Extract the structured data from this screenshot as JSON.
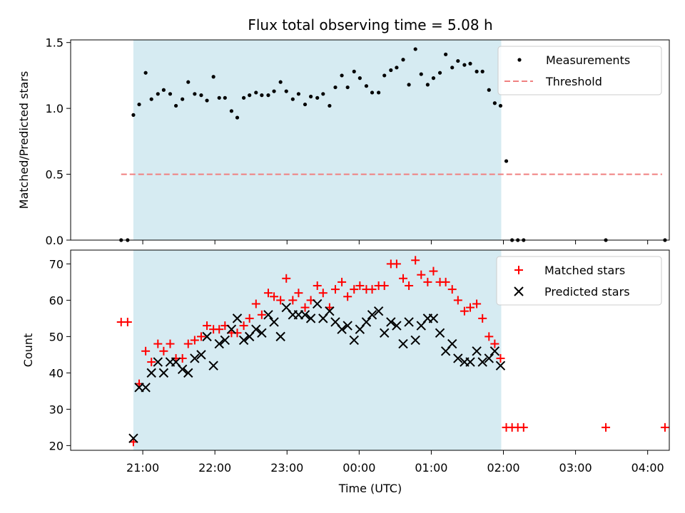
{
  "chart_data": {
    "title": "Flux total observing time = 5.08 h",
    "xlabel": "Time (UTC)",
    "x_unit": "hours (UTC, values >= 24 are the next day)",
    "xlim": [
      20.0,
      28.3
    ],
    "xticks": [
      {
        "value": 21,
        "label": "21:00"
      },
      {
        "value": 22,
        "label": "22:00"
      },
      {
        "value": 23,
        "label": "23:00"
      },
      {
        "value": 24,
        "label": "00:00"
      },
      {
        "value": 25,
        "label": "01:00"
      },
      {
        "value": 26,
        "label": "02:00"
      },
      {
        "value": 27,
        "label": "03:00"
      },
      {
        "value": 28,
        "label": "04:00"
      }
    ],
    "shaded_span": [
      20.87,
      25.97
    ],
    "shaded_color": "#add8e6",
    "panels": [
      {
        "type": "scatter",
        "ylabel": "Matched/Predicted stars",
        "ylim": [
          0,
          1.52
        ],
        "yticks": [
          {
            "value": 0,
            "label": "0.0"
          },
          {
            "value": 0.5,
            "label": "0.5"
          },
          {
            "value": 1.0,
            "label": "1.0"
          },
          {
            "value": 1.5,
            "label": "1.5"
          }
        ],
        "legend": {
          "position": "top-right",
          "entries": [
            "Measurements",
            "Threshold"
          ]
        },
        "threshold": {
          "name": "Threshold",
          "y": 0.5,
          "x_range": [
            20.7,
            28.2
          ],
          "color": "#f08080"
        },
        "series": [
          {
            "name": "Measurements",
            "color": "#000000",
            "x": [
              20.7,
              20.79,
              20.87,
              20.95,
              21.04,
              21.12,
              21.21,
              21.29,
              21.38,
              21.46,
              21.55,
              21.63,
              21.72,
              21.81,
              21.89,
              21.98,
              22.06,
              22.14,
              22.23,
              22.31,
              22.4,
              22.48,
              22.57,
              22.65,
              22.74,
              22.82,
              22.91,
              22.99,
              23.08,
              23.16,
              23.25,
              23.33,
              23.42,
              23.5,
              23.59,
              23.67,
              23.76,
              23.84,
              23.93,
              24.01,
              24.1,
              24.18,
              24.27,
              24.35,
              24.44,
              24.52,
              24.61,
              24.69,
              24.78,
              24.86,
              24.95,
              25.03,
              25.12,
              25.2,
              25.29,
              25.37,
              25.46,
              25.54,
              25.63,
              25.71,
              25.8,
              25.88,
              25.96,
              26.04,
              26.12,
              26.2,
              26.28,
              27.42,
              28.24
            ],
            "y": [
              0,
              0,
              0.95,
              1.03,
              1.27,
              1.07,
              1.11,
              1.14,
              1.11,
              1.02,
              1.07,
              1.2,
              1.11,
              1.1,
              1.06,
              1.24,
              1.08,
              1.08,
              0.98,
              0.93,
              1.08,
              1.1,
              1.12,
              1.1,
              1.1,
              1.13,
              1.2,
              1.13,
              1.07,
              1.11,
              1.03,
              1.09,
              1.08,
              1.11,
              1.02,
              1.16,
              1.25,
              1.16,
              1.28,
              1.23,
              1.17,
              1.12,
              1.12,
              1.25,
              1.29,
              1.31,
              1.37,
              1.18,
              1.45,
              1.26,
              1.18,
              1.23,
              1.27,
              1.41,
              1.31,
              1.36,
              1.33,
              1.34,
              1.28,
              1.28,
              1.14,
              1.04,
              1.02,
              0.6,
              0,
              0,
              0,
              0,
              0
            ]
          }
        ]
      },
      {
        "type": "scatter",
        "ylabel": "Count",
        "ylim": [
          18.7,
          73.8
        ],
        "yticks": [
          {
            "value": 20,
            "label": "20"
          },
          {
            "value": 30,
            "label": "30"
          },
          {
            "value": 40,
            "label": "40"
          },
          {
            "value": 50,
            "label": "50"
          },
          {
            "value": 60,
            "label": "60"
          },
          {
            "value": 70,
            "label": "70"
          }
        ],
        "legend": {
          "position": "top-right",
          "entries": [
            "Matched stars",
            "Predicted stars"
          ]
        },
        "series": [
          {
            "name": "Matched stars",
            "marker": "plus",
            "color": "#ff0000",
            "x": [
              20.7,
              20.79,
              20.87,
              20.95,
              21.04,
              21.12,
              21.21,
              21.29,
              21.38,
              21.46,
              21.55,
              21.63,
              21.72,
              21.81,
              21.89,
              21.98,
              22.06,
              22.14,
              22.23,
              22.31,
              22.4,
              22.48,
              22.57,
              22.65,
              22.74,
              22.82,
              22.91,
              22.99,
              23.08,
              23.16,
              23.25,
              23.33,
              23.42,
              23.5,
              23.59,
              23.67,
              23.76,
              23.84,
              23.93,
              24.01,
              24.1,
              24.18,
              24.27,
              24.35,
              24.44,
              24.52,
              24.61,
              24.69,
              24.78,
              24.86,
              24.95,
              25.03,
              25.12,
              25.2,
              25.29,
              25.37,
              25.46,
              25.54,
              25.63,
              25.71,
              25.8,
              25.88,
              25.96,
              26.04,
              26.12,
              26.2,
              26.28,
              27.42,
              28.24
            ],
            "y": [
              54,
              54,
              21,
              37,
              46,
              43,
              48,
              46,
              48,
              44,
              44,
              48,
              49,
              50,
              53,
              52,
              52,
              53,
              51,
              51,
              53,
              55,
              59,
              56,
              62,
              61,
              60,
              66,
              60,
              62,
              58,
              60,
              64,
              62,
              58,
              63,
              65,
              61,
              63,
              64,
              63,
              63,
              64,
              64,
              70,
              70,
              66,
              64,
              71,
              67,
              65,
              68,
              65,
              65,
              63,
              60,
              57,
              58,
              59,
              55,
              50,
              48,
              44,
              25,
              25,
              25,
              25,
              25,
              25
            ]
          },
          {
            "name": "Predicted stars",
            "marker": "x",
            "color": "#000000",
            "x": [
              20.87,
              20.95,
              21.04,
              21.12,
              21.21,
              21.29,
              21.38,
              21.46,
              21.55,
              21.63,
              21.72,
              21.81,
              21.89,
              21.98,
              22.06,
              22.14,
              22.23,
              22.31,
              22.4,
              22.48,
              22.57,
              22.65,
              22.74,
              22.82,
              22.91,
              22.99,
              23.08,
              23.16,
              23.25,
              23.33,
              23.42,
              23.5,
              23.59,
              23.67,
              23.76,
              23.84,
              23.93,
              24.01,
              24.1,
              24.18,
              24.27,
              24.35,
              24.44,
              24.52,
              24.61,
              24.69,
              24.78,
              24.86,
              24.95,
              25.03,
              25.12,
              25.2,
              25.29,
              25.37,
              25.46,
              25.54,
              25.63,
              25.71,
              25.8,
              25.88,
              25.96
            ],
            "y": [
              22,
              36,
              36,
              40,
              43,
              40,
              43,
              43,
              41,
              40,
              44,
              45,
              50,
              42,
              48,
              49,
              52,
              55,
              49,
              50,
              52,
              51,
              56,
              54,
              50,
              58,
              56,
              56,
              56,
              55,
              59,
              55,
              57,
              54,
              52,
              53,
              49,
              52,
              54,
              56,
              57,
              51,
              54,
              53,
              48,
              54,
              49,
              53,
              55,
              55,
              51,
              46,
              48,
              44,
              43,
              43,
              46,
              43,
              44,
              46,
              42
            ]
          }
        ]
      }
    ]
  }
}
